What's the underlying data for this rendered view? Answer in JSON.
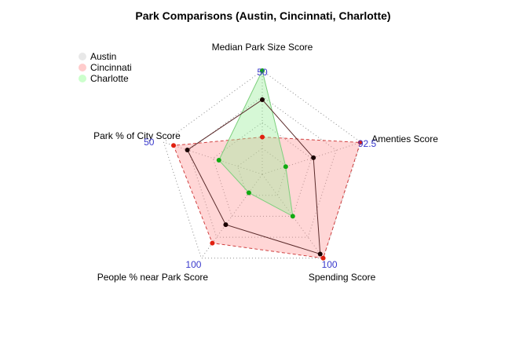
{
  "chart_data": {
    "type": "radar",
    "title": "Park Comparisons (Austin, Cincinnati, Charlotte)",
    "axes": [
      {
        "label": "Median Park Size Score",
        "max": 50
      },
      {
        "label": "Amenties Score",
        "max": 92.5
      },
      {
        "label": "Spending Score",
        "max": 100
      },
      {
        "label": "People % near Park Score",
        "max": 100
      },
      {
        "label": "Park % of City Score",
        "max": 50
      }
    ],
    "axis_max_labels": [
      "50",
      "92.5",
      "100",
      "100",
      "50"
    ],
    "grid_levels": 4,
    "series": [
      {
        "name": "Austin",
        "values": [
          36,
          48,
          95,
          60,
          38
        ],
        "line_color": "#5a2a2a",
        "fill": "none",
        "point_color": "#1a0000",
        "dashed": false
      },
      {
        "name": "Cincinnati",
        "values": [
          18,
          92,
          100,
          82,
          45
        ],
        "line_color": "#d04040",
        "fill": "#ff9999",
        "fill_opacity": 0.4,
        "point_color": "#e02010",
        "dashed": true
      },
      {
        "name": "Charlotte",
        "values": [
          50,
          22,
          50,
          22,
          22
        ],
        "line_color": "#7ccf7c",
        "fill": "#99ee99",
        "fill_opacity": 0.4,
        "point_color": "#11aa11",
        "dashed": false
      }
    ],
    "legend": {
      "position": "top-left"
    }
  }
}
